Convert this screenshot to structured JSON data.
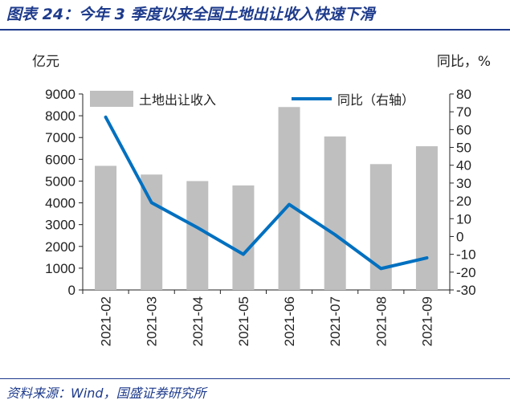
{
  "header": {
    "figure_title": "图表 24：今年 3 季度以来全国土地出让收入快速下滑"
  },
  "footer": {
    "source": "资料来源：Wind，国盛证券研究所"
  },
  "chart_data": {
    "type": "bar",
    "categories": [
      "2021-02",
      "2021-03",
      "2021-04",
      "2021-05",
      "2021-06",
      "2021-07",
      "2021-08",
      "2021-09"
    ],
    "series": [
      {
        "name": "土地出让收入",
        "type": "bar",
        "axis": "left",
        "color": "#bfbfbf",
        "values": [
          5700,
          5300,
          5000,
          4800,
          8400,
          7050,
          5780,
          6600
        ]
      },
      {
        "name": "同比（右轴）",
        "type": "line",
        "axis": "right",
        "color": "#0070c0",
        "values": [
          67,
          19,
          5,
          -10,
          18,
          1,
          -18,
          -12
        ]
      }
    ],
    "ylabel_left": "亿元",
    "ylabel_right": "同比，%",
    "ylim_left": [
      0,
      9000
    ],
    "ylim_right": [
      -30,
      80
    ],
    "yticks_left": [
      0,
      1000,
      2000,
      3000,
      4000,
      5000,
      6000,
      7000,
      8000,
      9000
    ],
    "yticks_right": [
      -30,
      -20,
      -10,
      0,
      10,
      20,
      30,
      40,
      50,
      60,
      70,
      80
    ],
    "legend_position": "top",
    "grid": false
  }
}
